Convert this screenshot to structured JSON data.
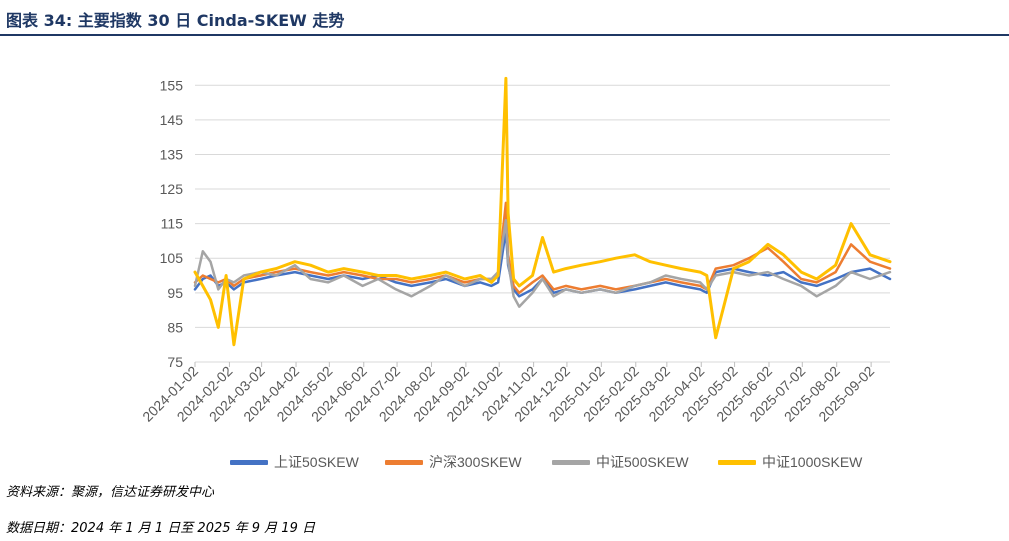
{
  "header": {
    "title": "图表 34: 主要指数 30 日 Cinda-SKEW 走势"
  },
  "footer": {
    "source": "资料来源：聚源，信达证券研发中心",
    "date_range": "数据日期：2024 年 1 月 1 日至 2025 年 9 月 19 日"
  },
  "colors": {
    "series1": "#4472c4",
    "series2": "#ed7d31",
    "series3": "#a5a5a5",
    "series4": "#ffc000",
    "grid": "#d9d9d9",
    "axis_text": "#595959"
  },
  "chart_data": {
    "type": "line",
    "title": "",
    "xlabel": "",
    "ylabel": "",
    "ylim": [
      75,
      160
    ],
    "yticks": [
      75,
      85,
      95,
      105,
      115,
      125,
      135,
      145,
      155
    ],
    "grid": true,
    "legend_position": "bottom",
    "categories": [
      "2024-01-02",
      "2024-02-02",
      "2024-03-02",
      "2024-04-02",
      "2024-05-02",
      "2024-06-02",
      "2024-07-02",
      "2024-08-02",
      "2024-09-02",
      "2024-10-02",
      "2024-11-02",
      "2024-12-02",
      "2025-01-02",
      "2025-02-02",
      "2025-03-02",
      "2025-04-02",
      "2025-05-02",
      "2025-06-02",
      "2025-07-02",
      "2025-08-02",
      "2025-09-02"
    ],
    "x": [
      "2024-01-02",
      "2024-01-09",
      "2024-01-16",
      "2024-01-23",
      "2024-01-30",
      "2024-02-06",
      "2024-02-15",
      "2024-03-01",
      "2024-03-15",
      "2024-04-01",
      "2024-04-15",
      "2024-05-01",
      "2024-05-15",
      "2024-06-01",
      "2024-06-15",
      "2024-07-01",
      "2024-07-15",
      "2024-08-01",
      "2024-08-15",
      "2024-09-01",
      "2024-09-15",
      "2024-09-25",
      "2024-10-01",
      "2024-10-08",
      "2024-10-10",
      "2024-10-15",
      "2024-10-20",
      "2024-11-01",
      "2024-11-10",
      "2024-11-20",
      "2024-12-01",
      "2024-12-15",
      "2025-01-01",
      "2025-01-15",
      "2025-02-01",
      "2025-02-15",
      "2025-03-01",
      "2025-03-15",
      "2025-04-01",
      "2025-04-07",
      "2025-04-15",
      "2025-05-01",
      "2025-05-15",
      "2025-06-01",
      "2025-06-15",
      "2025-07-01",
      "2025-07-15",
      "2025-08-01",
      "2025-08-15",
      "2025-09-01",
      "2025-09-19"
    ],
    "series": [
      {
        "name": "上证50SKEW",
        "values": [
          96,
          99,
          100,
          97,
          98,
          96,
          98,
          99,
          100,
          101,
          100,
          99,
          100,
          99,
          100,
          98,
          97,
          98,
          99,
          97,
          98,
          97,
          98,
          113,
          103,
          96,
          94,
          96,
          99,
          95,
          96,
          95,
          96,
          95,
          96,
          97,
          98,
          97,
          96,
          95,
          101,
          102,
          101,
          100,
          101,
          98,
          97,
          99,
          101,
          102,
          99
        ]
      },
      {
        "name": "沪深300SKEW",
        "values": [
          98,
          100,
          99,
          98,
          99,
          97,
          99,
          100,
          101,
          102,
          101,
          100,
          101,
          100,
          99,
          99,
          98,
          99,
          100,
          98,
          99,
          99,
          100,
          121,
          106,
          97,
          95,
          98,
          100,
          96,
          97,
          96,
          97,
          96,
          97,
          98,
          99,
          98,
          97,
          96,
          102,
          103,
          105,
          108,
          104,
          99,
          98,
          101,
          109,
          104,
          102
        ]
      },
      {
        "name": "中证500SKEW",
        "values": [
          97,
          107,
          104,
          96,
          99,
          98,
          100,
          101,
          100,
          103,
          99,
          98,
          100,
          97,
          99,
          96,
          94,
          97,
          100,
          97,
          99,
          99,
          101,
          116,
          104,
          94,
          91,
          95,
          99,
          94,
          96,
          95,
          96,
          95,
          97,
          98,
          100,
          99,
          98,
          96,
          100,
          101,
          100,
          101,
          99,
          97,
          94,
          97,
          101,
          99,
          101
        ]
      },
      {
        "name": "中证1000SKEW",
        "values": [
          101,
          97,
          93,
          85,
          100,
          80,
          99,
          101,
          102,
          104,
          103,
          101,
          102,
          101,
          100,
          100,
          99,
          100,
          101,
          99,
          100,
          98,
          100,
          157,
          118,
          99,
          97,
          100,
          111,
          101,
          102,
          103,
          104,
          105,
          106,
          104,
          103,
          102,
          101,
          100,
          82,
          102,
          104,
          109,
          106,
          101,
          99,
          103,
          115,
          106,
          104
        ]
      }
    ]
  }
}
